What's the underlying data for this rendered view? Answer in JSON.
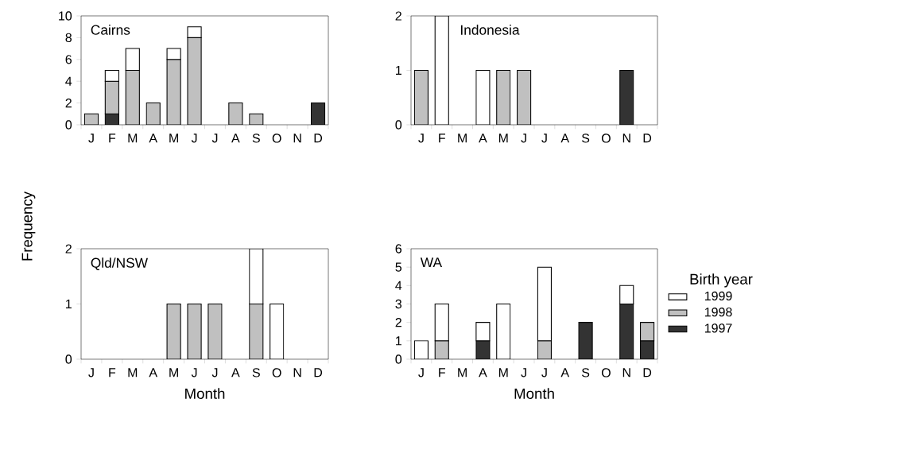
{
  "chart_data": [
    {
      "type": "bar",
      "stacked": true,
      "title": "Cairns",
      "ylabel": "Frequency",
      "categories": [
        "J",
        "F",
        "M",
        "A",
        "M",
        "J",
        "J",
        "A",
        "S",
        "O",
        "N",
        "D"
      ],
      "ylim": [
        0,
        10
      ],
      "yticks": [
        0,
        2,
        4,
        6,
        8,
        10
      ],
      "series": [
        {
          "color": "#333333",
          "values": [
            null,
            1,
            null,
            null,
            null,
            null,
            null,
            null,
            null,
            null,
            null,
            2
          ]
        },
        {
          "color": "#c0c0c0",
          "values": [
            1,
            3,
            5,
            2,
            6,
            8,
            null,
            2,
            1,
            null,
            null,
            null
          ]
        },
        {
          "color": "#ffffff",
          "values": [
            null,
            1,
            2,
            null,
            1,
            1,
            null,
            null,
            null,
            null,
            null,
            null
          ]
        }
      ]
    },
    {
      "type": "bar",
      "stacked": true,
      "title": "Indonesia",
      "categories": [
        "J",
        "F",
        "M",
        "A",
        "M",
        "J",
        "J",
        "A",
        "S",
        "O",
        "N",
        "D"
      ],
      "ylim": [
        0,
        2
      ],
      "yticks": [
        0,
        1,
        2
      ],
      "series": [
        {
          "color": "#333333",
          "values": [
            null,
            null,
            null,
            null,
            null,
            null,
            null,
            null,
            null,
            null,
            1,
            null
          ]
        },
        {
          "color": "#c0c0c0",
          "values": [
            1,
            null,
            null,
            null,
            1,
            1,
            null,
            null,
            null,
            null,
            null,
            null
          ]
        },
        {
          "color": "#ffffff",
          "values": [
            null,
            2,
            null,
            1,
            null,
            null,
            null,
            null,
            null,
            null,
            null,
            null
          ]
        }
      ]
    },
    {
      "type": "bar",
      "stacked": true,
      "title": "Qld/NSW",
      "xlabel": "Month",
      "categories": [
        "J",
        "F",
        "M",
        "A",
        "M",
        "J",
        "J",
        "A",
        "S",
        "O",
        "N",
        "D"
      ],
      "ylim": [
        0,
        2
      ],
      "yticks": [
        0,
        1,
        2
      ],
      "series": [
        {
          "color": "#c0c0c0",
          "values": [
            null,
            null,
            null,
            null,
            1,
            1,
            1,
            null,
            1,
            null,
            null,
            null
          ]
        },
        {
          "color": "#ffffff",
          "values": [
            null,
            null,
            null,
            null,
            null,
            null,
            null,
            null,
            1,
            1,
            null,
            null
          ]
        }
      ]
    },
    {
      "type": "bar",
      "stacked": true,
      "title": "WA",
      "xlabel": "Month",
      "legend": "right",
      "legend_title": "Birth year",
      "categories": [
        "J",
        "F",
        "M",
        "A",
        "M",
        "J",
        "J",
        "A",
        "S",
        "O",
        "N",
        "D"
      ],
      "ylim": [
        0,
        6
      ],
      "yticks": [
        0,
        1,
        2,
        3,
        4,
        5,
        6
      ],
      "series": [
        {
          "name": "1997",
          "color": "#333333",
          "values": [
            null,
            null,
            null,
            1,
            null,
            null,
            null,
            null,
            2,
            null,
            3,
            1
          ]
        },
        {
          "name": "1998",
          "color": "#c0c0c0",
          "values": [
            null,
            1,
            null,
            null,
            null,
            null,
            1,
            null,
            null,
            null,
            null,
            1
          ]
        },
        {
          "name": "1999",
          "color": "#ffffff",
          "values": [
            1,
            2,
            null,
            1,
            3,
            null,
            4,
            null,
            null,
            null,
            1,
            null
          ]
        }
      ]
    }
  ]
}
